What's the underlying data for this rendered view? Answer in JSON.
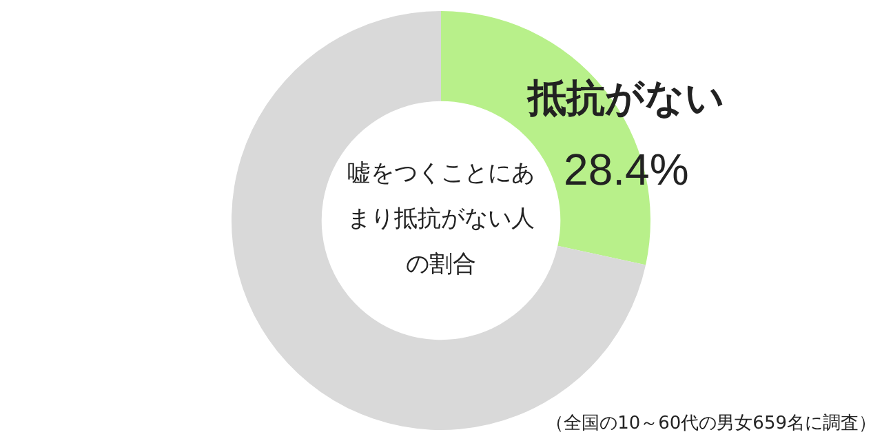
{
  "chart_data": {
    "type": "donut",
    "title": "嘘をつくことにあまり抵抗がない人の割合",
    "categories": [
      "抵抗がない",
      null
    ],
    "values": [
      28.4,
      71.6
    ],
    "colors": [
      "#b8f08a",
      "#d9d9d9"
    ],
    "value_labels": [
      "28.4%",
      null
    ],
    "legend": false,
    "annotations": [
      "（全国の10～60代の男女659名に調査）"
    ]
  }
}
